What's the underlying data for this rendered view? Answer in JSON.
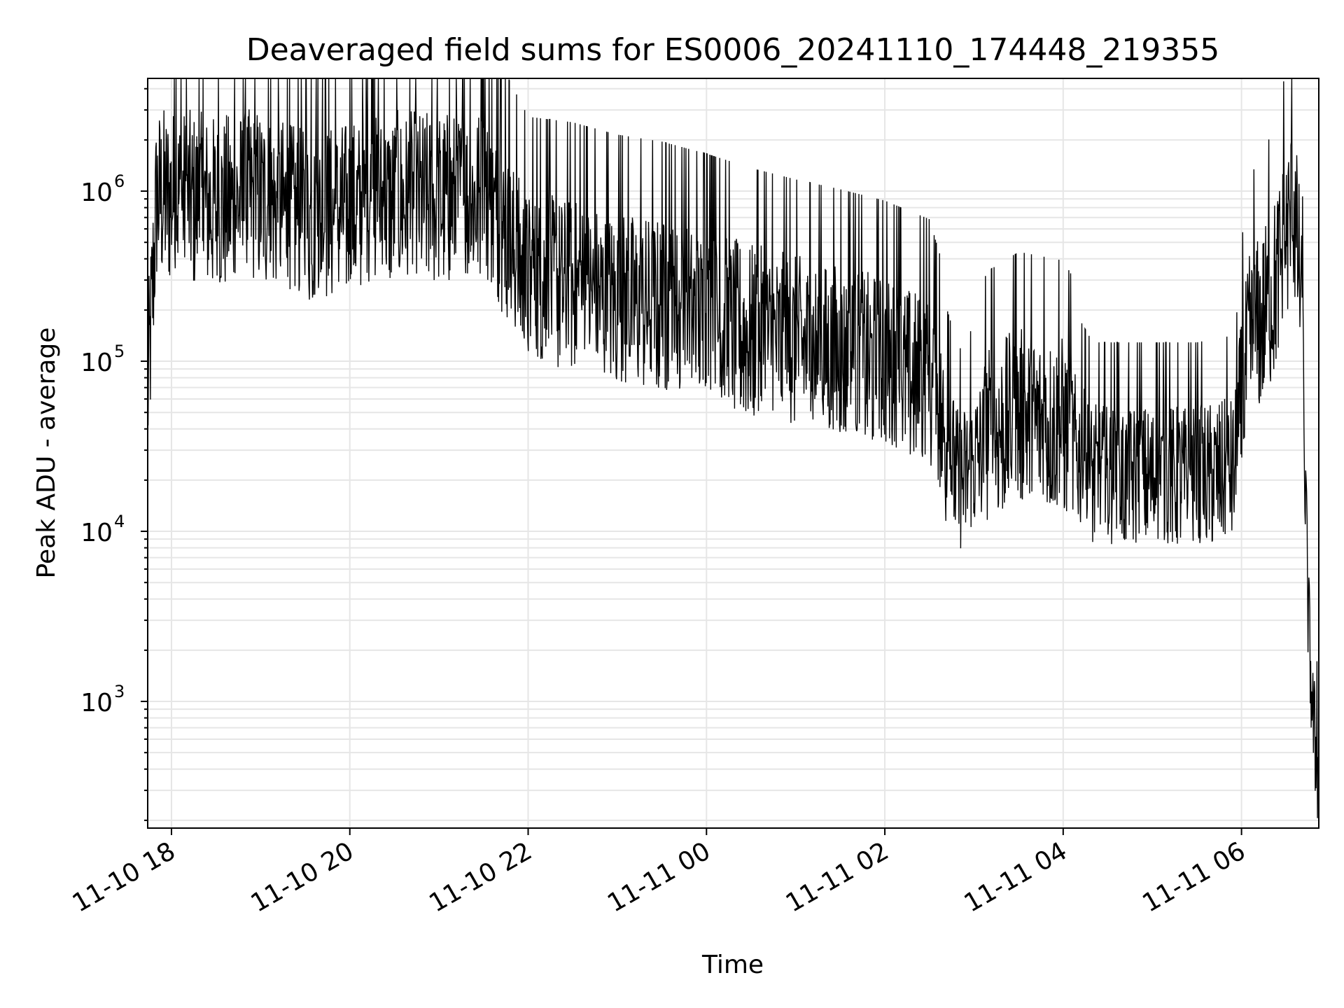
{
  "chart_data": {
    "type": "line",
    "title": "Deaveraged field sums for ES0006_20241110_174448_219355",
    "xlabel": "Time",
    "ylabel": "Peak ADU - average",
    "yscale": "log",
    "ylim": [
      180,
      4600000
    ],
    "xlim": [
      "2024-11-10 17:44",
      "2024-11-11 06:52"
    ],
    "grid": "major-and-minor",
    "line_color": "#000000",
    "x_ticks": [
      {
        "t": "2024-11-10 18:00",
        "label": "11-10 18"
      },
      {
        "t": "2024-11-10 20:00",
        "label": "11-10 20"
      },
      {
        "t": "2024-11-10 22:00",
        "label": "11-10 22"
      },
      {
        "t": "2024-11-11 00:00",
        "label": "11-11 00"
      },
      {
        "t": "2024-11-11 02:00",
        "label": "11-11 02"
      },
      {
        "t": "2024-11-11 04:00",
        "label": "11-11 04"
      },
      {
        "t": "2024-11-11 06:00",
        "label": "11-11 06"
      }
    ],
    "y_ticks": [
      {
        "value": 1000,
        "base": "10",
        "exp": "3"
      },
      {
        "value": 10000,
        "base": "10",
        "exp": "4"
      },
      {
        "value": 100000,
        "base": "10",
        "exp": "5"
      },
      {
        "value": 1000000,
        "base": "10",
        "exp": "6"
      }
    ],
    "series": [
      {
        "x": [
          "2024-11-10 17:44",
          "2024-11-10 17:50",
          "2024-11-10 18:00",
          "2024-11-10 18:30",
          "2024-11-10 19:00",
          "2024-11-10 19:30",
          "2024-11-10 20:00",
          "2024-11-10 20:30",
          "2024-11-10 21:00",
          "2024-11-10 21:30",
          "2024-11-10 22:00",
          "2024-11-10 22:30",
          "2024-11-10 23:00",
          "2024-11-10 23:30",
          "2024-11-11 00:00",
          "2024-11-11 00:30",
          "2024-11-11 01:00",
          "2024-11-11 01:30",
          "2024-11-11 02:00",
          "2024-11-11 02:30",
          "2024-11-11 02:50",
          "2024-11-11 03:10",
          "2024-11-11 03:30",
          "2024-11-11 04:00",
          "2024-11-11 04:20",
          "2024-11-11 04:40",
          "2024-11-11 05:00",
          "2024-11-11 05:30",
          "2024-11-11 05:55",
          "2024-11-11 06:05",
          "2024-11-11 06:20",
          "2024-11-11 06:35",
          "2024-11-11 06:40",
          "2024-11-11 06:45",
          "2024-11-11 06:48",
          "2024-11-11 06:52"
        ],
        "y": [
          60000,
          900000,
          900000,
          800000,
          900000,
          650000,
          750000,
          850000,
          850000,
          900000,
          280000,
          260000,
          220000,
          200000,
          170000,
          140000,
          120000,
          105000,
          90000,
          70000,
          18000,
          35000,
          45000,
          40000,
          20000,
          20000,
          20000,
          20000,
          22000,
          120000,
          220000,
          800000,
          250000,
          3000,
          800,
          300
        ]
      }
    ]
  }
}
